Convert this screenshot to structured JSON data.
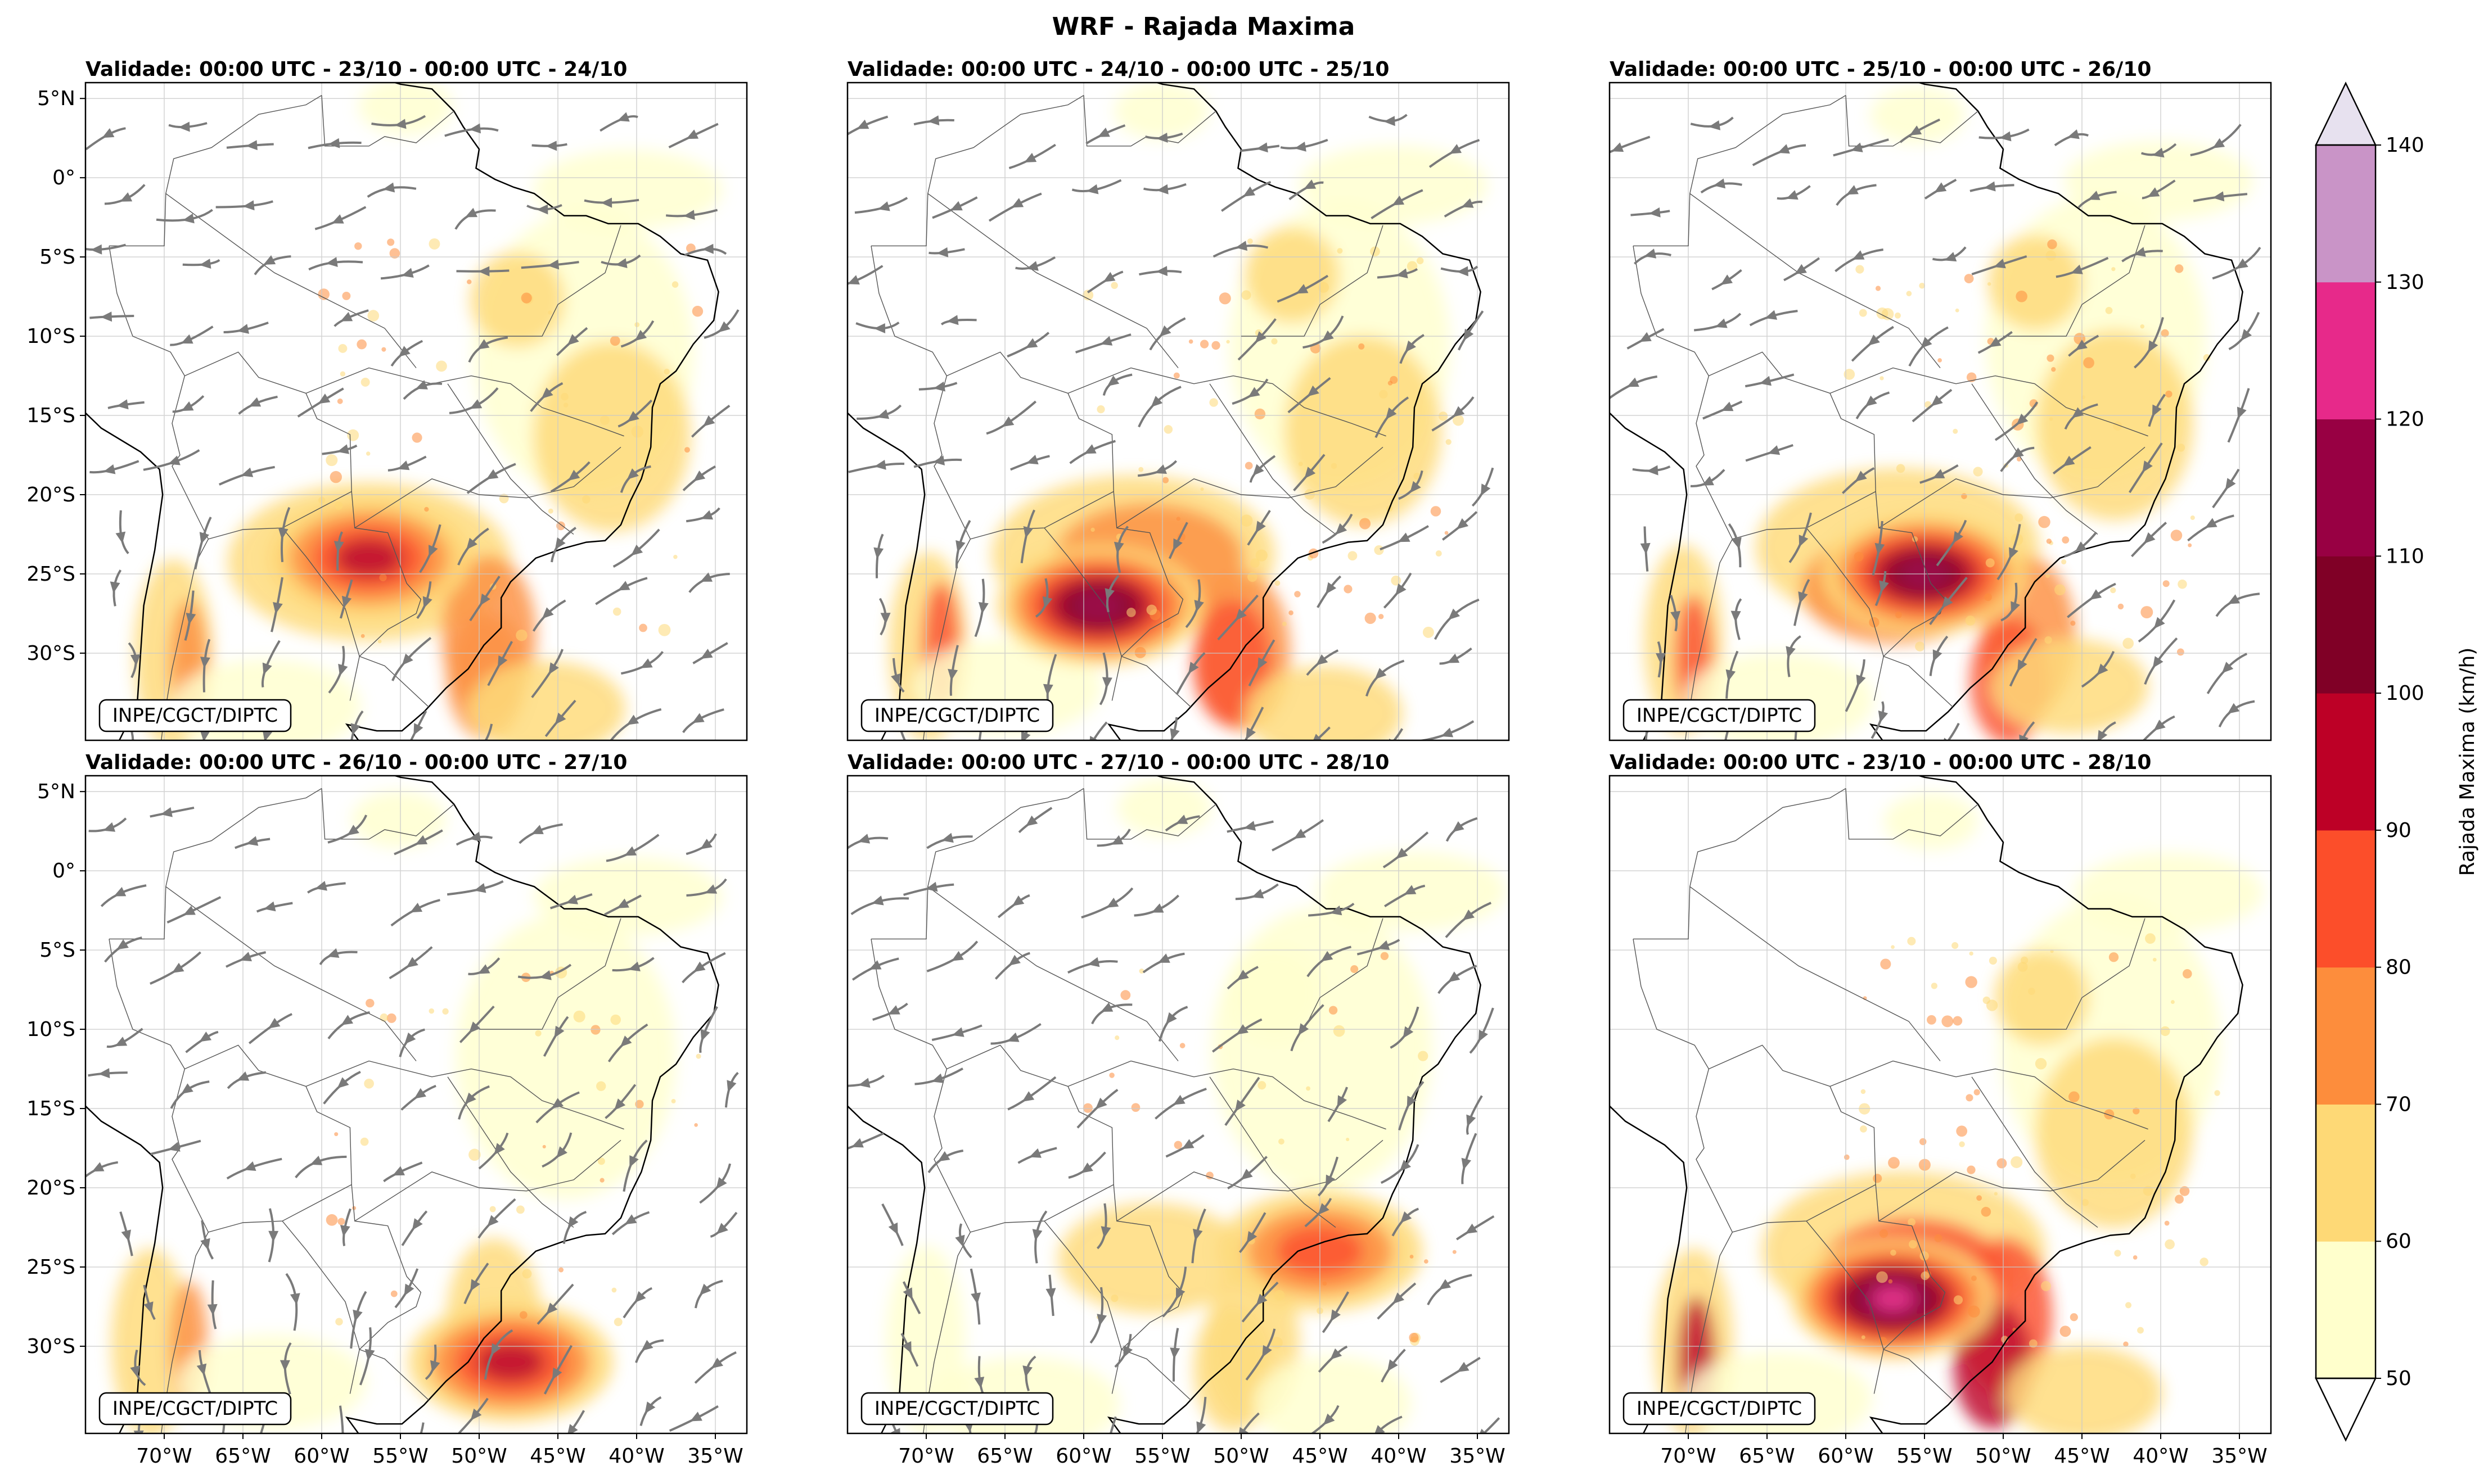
{
  "figure": {
    "title": "WRF - Rajada Maxima",
    "credit": "INPE/CGCT/DIPTC"
  },
  "panels": [
    {
      "validity": "Validade: 00:00 UTC - 23/10 - 00:00 UTC - 24/10",
      "has_streamlines": true,
      "mean_field": 0.55,
      "core": {
        "lon": -57,
        "lat": -24,
        "level": 3
      }
    },
    {
      "validity": "Validade: 00:00 UTC - 24/10 - 00:00 UTC - 25/10",
      "has_streamlines": true,
      "mean_field": 0.75,
      "core": {
        "lon": -59,
        "lat": -27,
        "level": 5
      }
    },
    {
      "validity": "Validade: 00:00 UTC - 25/10 - 00:00 UTC - 26/10",
      "has_streamlines": true,
      "mean_field": 0.8,
      "core": {
        "lon": -55,
        "lat": -25,
        "level": 5
      }
    },
    {
      "validity": "Validade: 00:00 UTC - 26/10 - 00:00 UTC - 27/10",
      "has_streamlines": true,
      "mean_field": 0.4,
      "core": {
        "lon": -48,
        "lat": -31,
        "level": 3
      }
    },
    {
      "validity": "Validade: 00:00 UTC - 27/10 - 00:00 UTC - 28/10",
      "has_streamlines": true,
      "mean_field": 0.35,
      "core": {
        "lon": -45,
        "lat": -24,
        "level": 2
      }
    },
    {
      "validity": "Validade: 00:00 UTC - 23/10 - 00:00 UTC - 28/10",
      "has_streamlines": false,
      "mean_field": 0.9,
      "core": {
        "lon": -57,
        "lat": -27,
        "level": 6
      }
    }
  ],
  "axes": {
    "lon_ticks": [
      "70°W",
      "65°W",
      "60°W",
      "55°W",
      "50°W",
      "45°W",
      "40°W",
      "35°W"
    ],
    "lon_values": [
      -70,
      -65,
      -60,
      -55,
      -50,
      -45,
      -40,
      -35
    ],
    "lat_ticks": [
      "5°N",
      "0°",
      "5°S",
      "10°S",
      "15°S",
      "20°S",
      "25°S",
      "30°S"
    ],
    "lat_values": [
      5,
      0,
      -5,
      -10,
      -15,
      -20,
      -25,
      -30
    ],
    "lon_range": [
      -75,
      -33
    ],
    "lat_range": [
      -35.5,
      6
    ],
    "grid": true
  },
  "colorbar": {
    "label": "Rajada Maxima (km/h)",
    "levels": [
      50,
      60,
      70,
      80,
      90,
      100,
      110,
      120,
      130,
      140
    ],
    "level_labels": [
      "50",
      "60",
      "70",
      "80",
      "90",
      "100",
      "110",
      "120",
      "130",
      "140"
    ],
    "colors": [
      "#ffffcc",
      "#fed976",
      "#fd8d3c",
      "#fc4e2a",
      "#bd0026",
      "#800026",
      "#980043",
      "#e7298a",
      "#c994c7",
      "#e7e1ef"
    ],
    "under_color": "#ffffff",
    "over_color": "#e7e1ef",
    "extend": "both"
  }
}
